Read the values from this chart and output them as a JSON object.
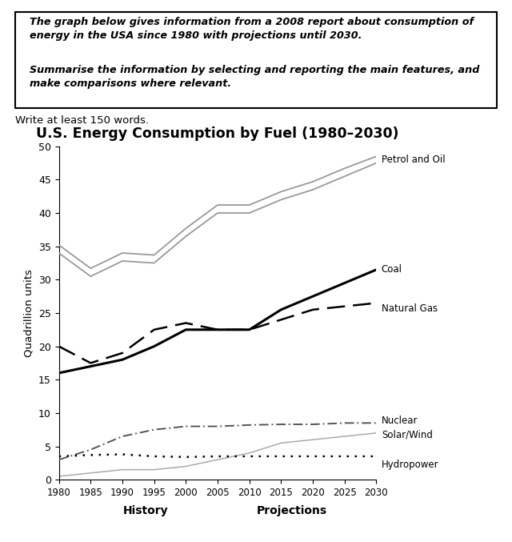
{
  "title": "U.S. Energy Consumption by Fuel (1980–2030)",
  "ylabel": "Quadrillion units",
  "xlabel_history": "History",
  "xlabel_projections": "Projections",
  "write_at_least": "Write at least 150 words.",
  "years": [
    1980,
    1985,
    1990,
    1995,
    2000,
    2005,
    2010,
    2015,
    2020,
    2025,
    2030
  ],
  "petrol_and_oil_lo": [
    34.0,
    30.5,
    32.8,
    32.5,
    36.5,
    40.0,
    40.0,
    42.0,
    43.5,
    45.5,
    47.5
  ],
  "petrol_and_oil_hi": [
    35.2,
    31.7,
    34.0,
    33.7,
    37.7,
    41.2,
    41.2,
    43.2,
    44.7,
    46.7,
    48.5
  ],
  "coal": [
    16.0,
    17.0,
    18.0,
    20.0,
    22.5,
    22.5,
    22.5,
    25.5,
    27.5,
    29.5,
    31.5
  ],
  "natural_gas": [
    20.0,
    17.5,
    19.0,
    22.5,
    23.5,
    22.5,
    22.5,
    24.0,
    25.5,
    26.0,
    26.5
  ],
  "nuclear": [
    3.0,
    4.5,
    6.5,
    7.5,
    8.0,
    8.0,
    8.2,
    8.3,
    8.3,
    8.5,
    8.5
  ],
  "solar_wind": [
    0.5,
    1.0,
    1.5,
    1.5,
    2.0,
    3.0,
    4.0,
    5.5,
    6.0,
    6.5,
    7.0
  ],
  "hydropower": [
    3.5,
    3.7,
    3.8,
    3.5,
    3.4,
    3.5,
    3.5,
    3.5,
    3.5,
    3.5,
    3.5
  ],
  "ylim": [
    0,
    50
  ],
  "yticks": [
    0,
    5,
    10,
    15,
    20,
    25,
    30,
    35,
    40,
    45,
    50
  ],
  "background_color": "#ffffff"
}
